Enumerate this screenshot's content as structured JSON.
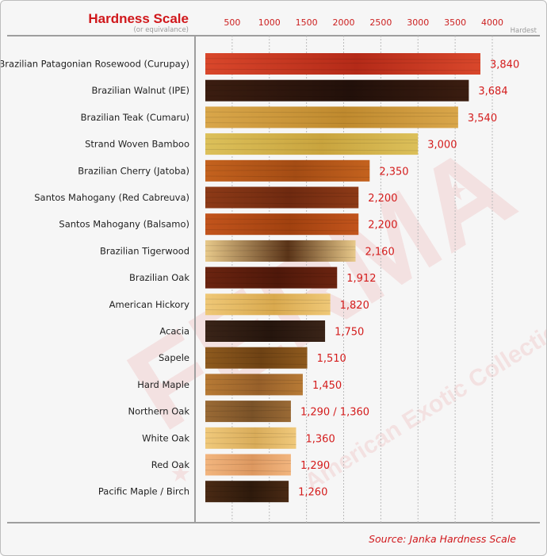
{
  "chart_data": {
    "type": "bar",
    "orientation": "horizontal",
    "title": "Hardness Scale",
    "subtitle": "(or equivalance)",
    "axis_end_label": "Hardest",
    "source": "Source: Janka Hardness Scale",
    "xlim": [
      0,
      4000
    ],
    "ticks": [
      500,
      1000,
      1500,
      2000,
      2500,
      3000,
      3500,
      4000
    ],
    "tick_labels": [
      "500",
      "1000",
      "1500",
      "2000",
      "2500",
      "3000",
      "3500",
      "4000"
    ],
    "grid": true,
    "categories": [
      "Brazilian Patagonian Rosewood (Curupay)",
      "Brazilian Walnut (IPE)",
      "Brazilian Teak (Cumaru)",
      "Strand Woven Bamboo",
      "Brazilian Cherry (Jatoba)",
      "Santos Mahogany (Red Cabreuva)",
      "Santos Mahogany (Balsamo)",
      "Brazilian Tigerwood",
      "Brazilian Oak",
      "American Hickory",
      "Acacia",
      "Sapele",
      "Hard Maple",
      "Northern Oak",
      "White Oak",
      "Red Oak",
      "Pacific Maple / Birch"
    ],
    "values": [
      3840,
      3684,
      3540,
      3000,
      2350,
      2200,
      2200,
      2160,
      1912,
      1820,
      1750,
      1510,
      1450,
      1290,
      1360,
      1290,
      1260
    ],
    "value_labels": [
      "3,840",
      "3,684",
      "3,540",
      "3,000",
      "2,350",
      "2,200",
      "2,200",
      "2,160",
      "1,912",
      "1,820",
      "1,750",
      "1,510",
      "1,450",
      "1,290 / 1,360",
      "1,360",
      "1,290",
      "1,260"
    ],
    "bar_colors": [
      [
        "#d9472b",
        "#b42a18"
      ],
      [
        "#3b1d10",
        "#22100a"
      ],
      [
        "#d9a64a",
        "#c08a2e"
      ],
      [
        "#dcc05a",
        "#c9a43e"
      ],
      [
        "#c4621e",
        "#a44c14"
      ],
      [
        "#8d3a17",
        "#6f2a10"
      ],
      [
        "#c2541c",
        "#a1410f"
      ],
      [
        "#e8c98a",
        "#5a3418"
      ],
      [
        "#6b2410",
        "#4f180a"
      ],
      [
        "#efc877",
        "#d9a94e"
      ],
      [
        "#3a2418",
        "#25150d"
      ],
      [
        "#8e5a1e",
        "#6e4214"
      ],
      [
        "#b77a35",
        "#97602a"
      ],
      [
        "#9a6a35",
        "#7a5228"
      ],
      [
        "#f0c97b",
        "#d9ac5a"
      ],
      [
        "#f2b57e",
        "#dd9860"
      ],
      [
        "#4a2a14",
        "#2e1a0c"
      ]
    ],
    "watermark": {
      "brand": "FERMA",
      "line": "American Exotic Collection",
      "color": "#d83030"
    }
  }
}
